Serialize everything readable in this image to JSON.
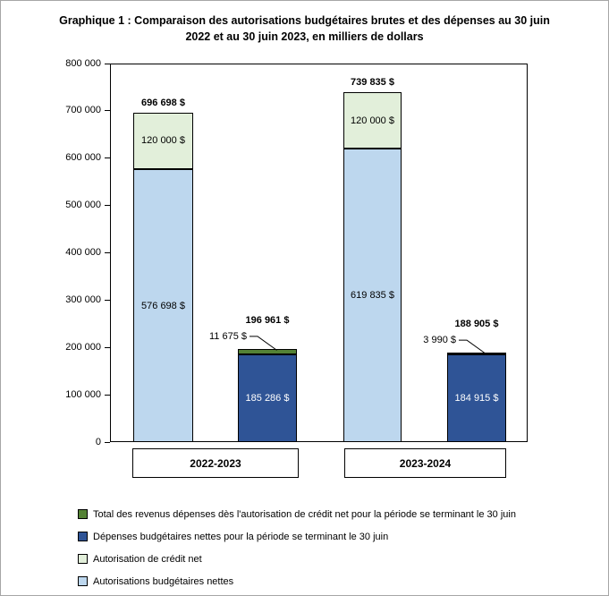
{
  "figure": {
    "title_line1": "Graphique 1 : Comparaison des autorisations budgétaires brutes et des dépenses au 30 juin",
    "title_line2": "2022 et au 30 juin 2023, en milliers de dollars"
  },
  "chart_data": {
    "type": "bar",
    "stacked": true,
    "title": "Graphique 1 : Comparaison des autorisations budgétaires brutes et des dépenses au 30 juin 2022 et au 30 juin 2023, en milliers de dollars",
    "xlabel": "",
    "ylabel": "",
    "unit": "milliers de dollars",
    "grid": false,
    "legend_position": "bottom-left",
    "ylim": [
      0,
      800000
    ],
    "ytick_step": 100000,
    "ytick_labels": [
      "0",
      "100 000",
      "200 000",
      "300 000",
      "400 000",
      "500 000",
      "600 000",
      "700 000",
      "800 000"
    ],
    "categories": [
      "2022-2023",
      "2023-2024"
    ],
    "groups": [
      {
        "label": "2022-2023",
        "bars": [
          {
            "name": "autorisations-budgetaires-brutes",
            "total": 696698,
            "total_label": "696 698 $",
            "segments": [
              {
                "series": "Autorisations budgétaires nettes",
                "value": 576698,
                "label": "576 698 $",
                "color": "#BDD7EE",
                "text_color": "#000000"
              },
              {
                "series": "Autorisation de crédit net",
                "value": 120000,
                "label": "120 000 $",
                "color": "#E2EFDA",
                "text_color": "#000000"
              }
            ]
          },
          {
            "name": "depenses-au-30-juin",
            "total": 196961,
            "total_label": "196 961 $",
            "segments": [
              {
                "series": "Dépenses budgétaires nettes pour la période se terminant le 30 juin",
                "value": 185286,
                "label": "185 286 $",
                "color": "#2F5496",
                "text_color": "#FFFFFF"
              },
              {
                "series": "Total des revenus dépenses dès l'autorisation de crédit net pour la période se terminant le 30 juin",
                "value": 11675,
                "label": "11 675 $",
                "color": "#548235",
                "callout": true
              }
            ]
          }
        ]
      },
      {
        "label": "2023-2024",
        "bars": [
          {
            "name": "autorisations-budgetaires-brutes",
            "total": 739835,
            "total_label": "739 835 $",
            "segments": [
              {
                "series": "Autorisations budgétaires nettes",
                "value": 619835,
                "label": "619 835 $",
                "color": "#BDD7EE",
                "text_color": "#000000"
              },
              {
                "series": "Autorisation de crédit net",
                "value": 120000,
                "label": "120 000 $",
                "color": "#E2EFDA",
                "text_color": "#000000"
              }
            ]
          },
          {
            "name": "depenses-au-30-juin",
            "total": 188905,
            "total_label": "188 905 $",
            "segments": [
              {
                "series": "Dépenses budgétaires nettes pour la période se terminant le 30 juin",
                "value": 184915,
                "label": "184 915 $",
                "color": "#2F5496",
                "text_color": "#FFFFFF"
              },
              {
                "series": "Total des revenus dépenses dès l'autorisation de crédit net pour la période se terminant le 30 juin",
                "value": 3990,
                "label": "3 990 $",
                "color": "#548235",
                "callout": true
              }
            ]
          }
        ]
      }
    ],
    "legend": [
      {
        "label": "Total des revenus dépenses dès l'autorisation de crédit net pour la période se terminant le 30 juin",
        "color": "#548235"
      },
      {
        "label": "Dépenses budgétaires nettes pour la période se terminant le 30 juin",
        "color": "#2F5496"
      },
      {
        "label": "Autorisation de crédit net",
        "color": "#E2EFDA"
      },
      {
        "label": "Autorisations budgétaires nettes",
        "color": "#BDD7EE"
      }
    ]
  },
  "colors": {
    "bar_border": "#000000",
    "figure_border": "#A6A6A6",
    "background": "#FFFFFF"
  }
}
